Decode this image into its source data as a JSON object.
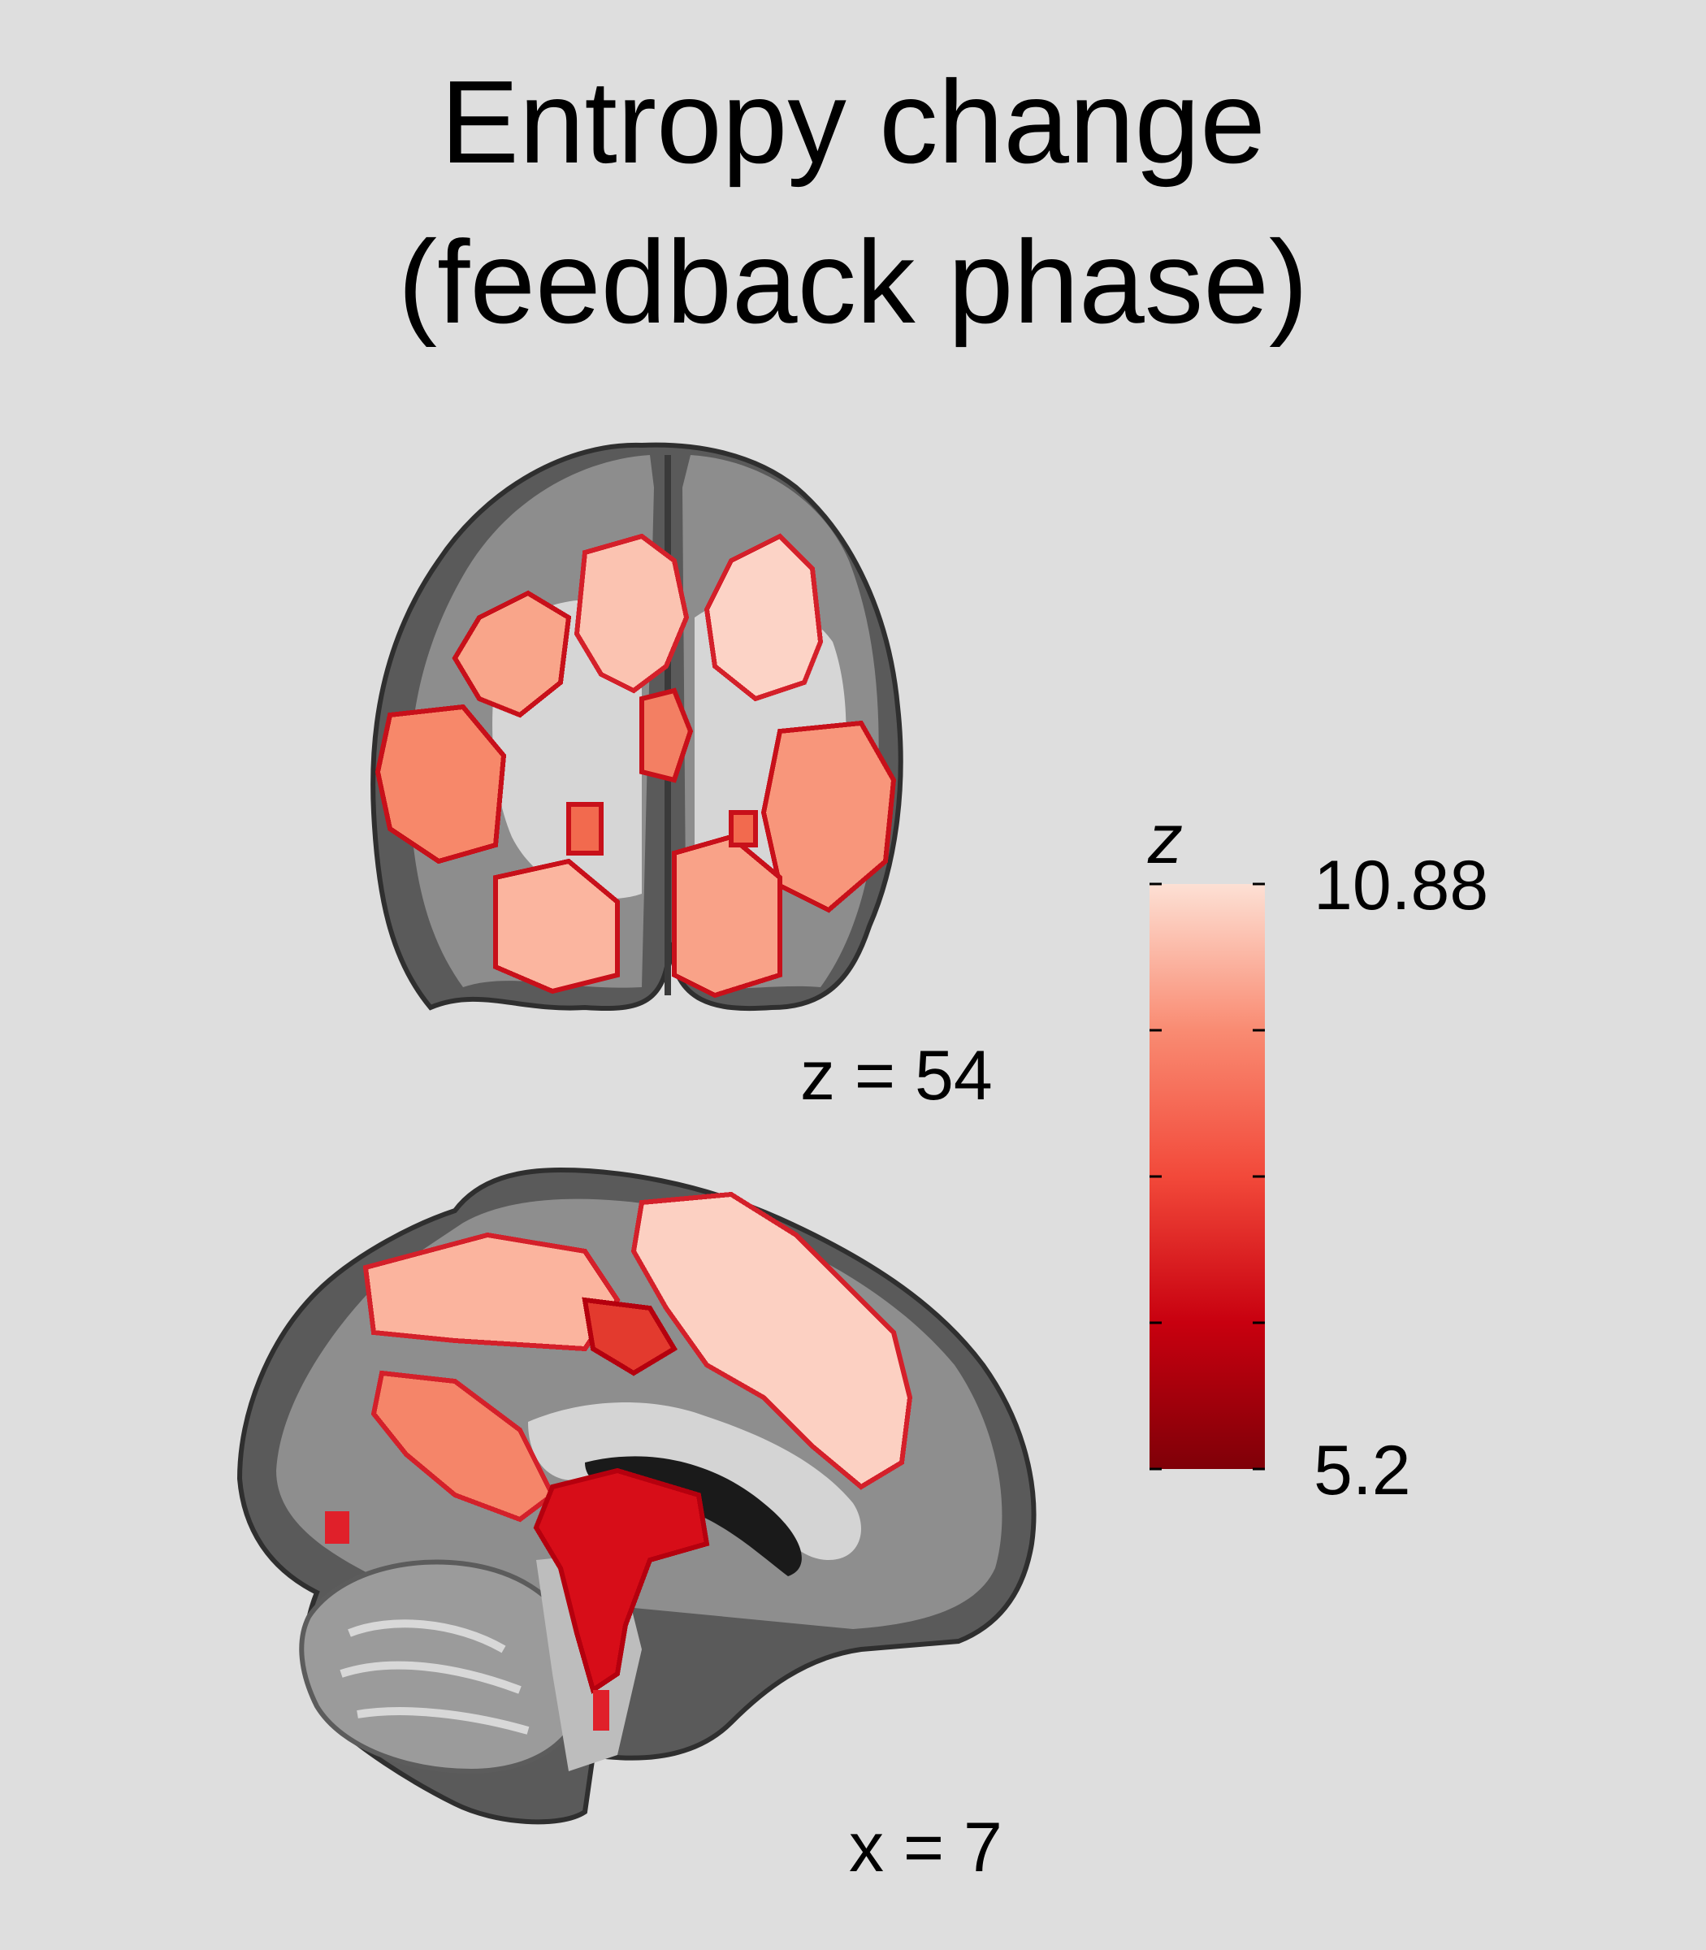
{
  "title": {
    "line1": "Entropy change",
    "line2": "(feedback phase)"
  },
  "slices": [
    {
      "label": "z = 54",
      "view": "axial"
    },
    {
      "label": "x = 7",
      "view": "sagittal"
    }
  ],
  "colorbar": {
    "symbol": "z",
    "max_label": "10.88",
    "min_label": "5.2",
    "max": 10.88,
    "min": 5.2,
    "colors": [
      "#7f0008",
      "#c8000f",
      "#f2493a",
      "#f98b72",
      "#fde0d4"
    ]
  }
}
